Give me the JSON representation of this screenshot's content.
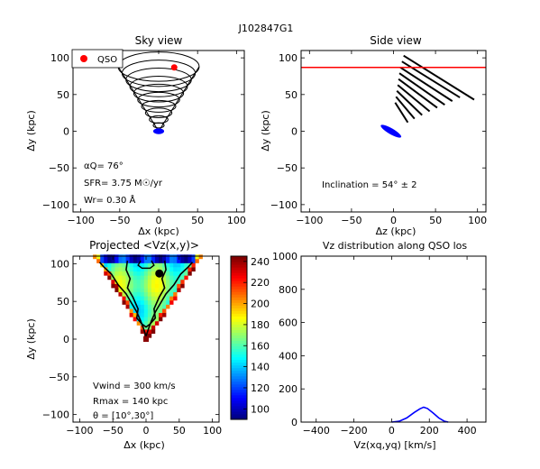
{
  "figure_title": "J102847G1",
  "chart_data": [
    {
      "type": "scatter",
      "panel": "sky-view",
      "title": "Sky view",
      "xlabel": "Δx (kpc)",
      "ylabel": "Δy (kpc)",
      "xlim": [
        -110,
        110
      ],
      "ylim": [
        -110,
        110
      ],
      "xticks": [
        -100,
        -50,
        0,
        50,
        100
      ],
      "yticks": [
        100,
        50,
        0,
        -50,
        -100
      ],
      "legend": {
        "location": "top-left",
        "entries": [
          {
            "label": "QSO",
            "color": "#ff0000"
          }
        ]
      },
      "qso": {
        "x": 20,
        "y": 87
      },
      "galaxy_ellipse": {
        "cx": 0,
        "cy": 0,
        "rx": 7,
        "ry": 4,
        "color": "#0000ff"
      },
      "cone_rings": [
        {
          "cy": 88,
          "rx": 52,
          "ry": 20
        },
        {
          "cy": 79,
          "rx": 47,
          "ry": 18
        },
        {
          "cy": 70,
          "rx": 42,
          "ry": 16
        },
        {
          "cy": 61,
          "rx": 37,
          "ry": 14
        },
        {
          "cy": 52,
          "rx": 32,
          "ry": 12
        },
        {
          "cy": 43,
          "rx": 27,
          "ry": 10
        },
        {
          "cy": 34,
          "rx": 22,
          "ry": 8
        },
        {
          "cy": 25,
          "rx": 17,
          "ry": 6.5
        },
        {
          "cy": 16,
          "rx": 12,
          "ry": 5
        },
        {
          "cy": 8,
          "rx": 7,
          "ry": 3.5
        }
      ],
      "annotations": [
        {
          "label": "α_Q",
          "value": "76°"
        },
        {
          "label": "SFR",
          "value": "3.75 M☉/yr"
        },
        {
          "label": "W_r",
          "value": "0.30 Å"
        }
      ],
      "annotation_lines": [
        "αQ= 76°",
        "SFR= 3.75 M☉/yr",
        "Wr= 0.30 Å"
      ]
    },
    {
      "type": "line",
      "panel": "side-view",
      "title": "Side view",
      "xlabel": "Δz (kpc)",
      "ylabel": "Δy (kpc)",
      "xlim": [
        -110,
        110
      ],
      "ylim": [
        -110,
        110
      ],
      "xticks": [
        -100,
        -50,
        0,
        50,
        100
      ],
      "yticks": [
        100,
        50,
        0,
        -50,
        -100
      ],
      "los_y": 87,
      "los_color": "#ff0000",
      "wind_lines": [
        {
          "x1": 12,
          "y1": 103,
          "x2": 96,
          "y2": 43
        },
        {
          "x1": 10,
          "y1": 95,
          "x2": 79,
          "y2": 46
        },
        {
          "x1": 8,
          "y1": 87,
          "x2": 70,
          "y2": 41
        },
        {
          "x1": 7,
          "y1": 79,
          "x2": 61,
          "y2": 36
        },
        {
          "x1": 6,
          "y1": 71,
          "x2": 52,
          "y2": 32
        },
        {
          "x1": 5,
          "y1": 63,
          "x2": 43,
          "y2": 27
        },
        {
          "x1": 4,
          "y1": 55,
          "x2": 34,
          "y2": 22
        },
        {
          "x1": 3,
          "y1": 47,
          "x2": 25,
          "y2": 17
        },
        {
          "x1": 2,
          "y1": 39,
          "x2": 17,
          "y2": 12
        }
      ],
      "galaxy_ellipse": {
        "cx": -3,
        "cy": 0,
        "rx": 14,
        "ry": 4,
        "angle": 30,
        "color": "#0000ff"
      },
      "annotation": "Inclination =  54°  ±  2"
    },
    {
      "type": "heatmap",
      "panel": "projected-vz",
      "title": "Projected  <Vz(x,y)>",
      "xlabel": "Δx (kpc)",
      "ylabel": "Δy (kpc)",
      "xlim": [
        -110,
        110
      ],
      "ylim": [
        -110,
        110
      ],
      "xticks": [
        -100,
        -50,
        0,
        50,
        100
      ],
      "yticks": [
        100,
        50,
        0,
        -50,
        -100
      ],
      "colorbar": {
        "min": 90,
        "max": 245,
        "ticks": [
          240,
          220,
          200,
          180,
          160,
          140,
          120,
          100
        ]
      },
      "qso": {
        "x": 20,
        "y": 87
      },
      "center_marker": {
        "x": 0,
        "y": 0,
        "color": "#8b0000"
      },
      "annotations": [
        "Vwind = 300 km/s",
        "Rmax = 140 kpc",
        "θ = [10°,30°]"
      ]
    },
    {
      "type": "line",
      "panel": "vz-distribution",
      "title": "Vz distribution along QSO los",
      "xlabel": "Vz(xq,yq) [km/s]",
      "ylabel": "",
      "xlim": [
        -480,
        500
      ],
      "ylim": [
        0,
        1000
      ],
      "xticks": [
        -400,
        -200,
        0,
        200,
        400
      ],
      "yticks": [
        1000,
        800,
        600,
        400,
        200,
        0
      ],
      "series": [
        {
          "color": "#0000ff",
          "x": [
            0,
            40,
            80,
            120,
            150,
            170,
            190,
            220,
            250,
            280,
            300
          ],
          "y": [
            0,
            5,
            25,
            58,
            80,
            90,
            82,
            55,
            25,
            5,
            0
          ]
        }
      ]
    }
  ]
}
